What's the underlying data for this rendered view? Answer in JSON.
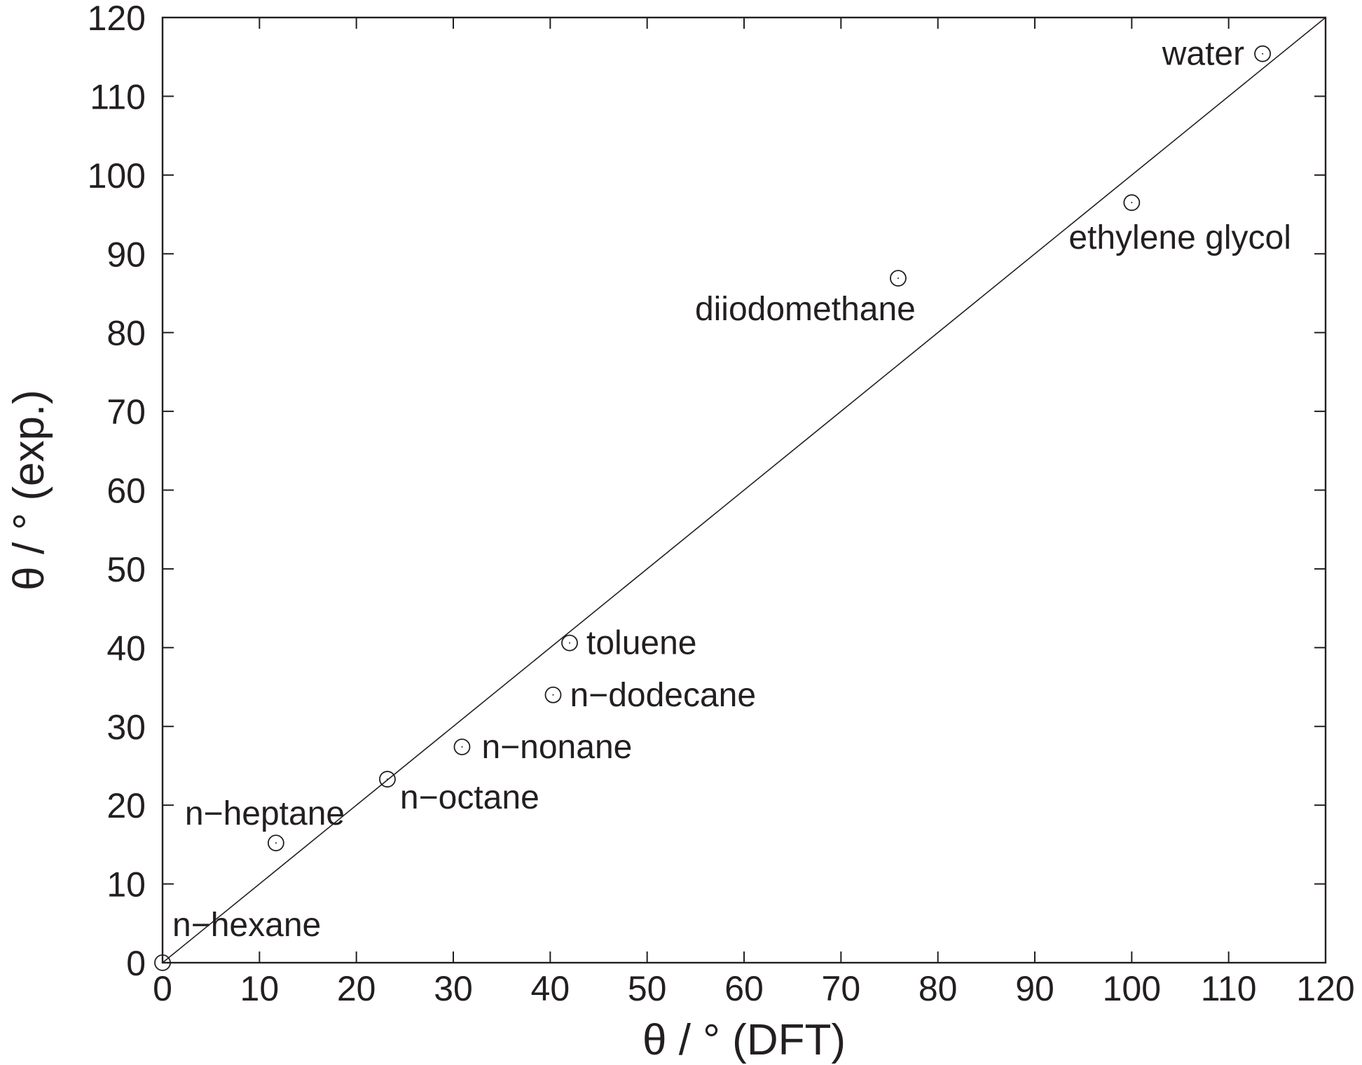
{
  "chart_data": {
    "type": "scatter",
    "xlabel": "θ / ° (DFT)",
    "ylabel": "θ / ° (exp.)",
    "xlim": [
      0,
      120
    ],
    "ylim": [
      0,
      120
    ],
    "xticks": [
      0,
      10,
      20,
      30,
      40,
      50,
      60,
      70,
      80,
      90,
      100,
      110,
      120
    ],
    "yticks": [
      0,
      10,
      20,
      30,
      40,
      50,
      60,
      70,
      80,
      90,
      100,
      110,
      120
    ],
    "grid": false,
    "reference_line": {
      "type": "y=x",
      "from": [
        0,
        0
      ],
      "to": [
        120,
        120
      ]
    },
    "points": [
      {
        "name": "n−hexane",
        "x": 0,
        "y": 0
      },
      {
        "name": "n−heptane",
        "x": 11.7,
        "y": 15.2
      },
      {
        "name": "n−octane",
        "x": 23.2,
        "y": 23.3
      },
      {
        "name": "n−nonane",
        "x": 30.9,
        "y": 27.4
      },
      {
        "name": "n−dodecane",
        "x": 40.3,
        "y": 34.0
      },
      {
        "name": "toluene",
        "x": 42.0,
        "y": 40.6
      },
      {
        "name": "diiodomethane",
        "x": 75.9,
        "y": 86.9
      },
      {
        "name": "ethylene glycol",
        "x": 100.0,
        "y": 96.5
      },
      {
        "name": "water",
        "x": 113.5,
        "y": 115.4
      }
    ]
  }
}
